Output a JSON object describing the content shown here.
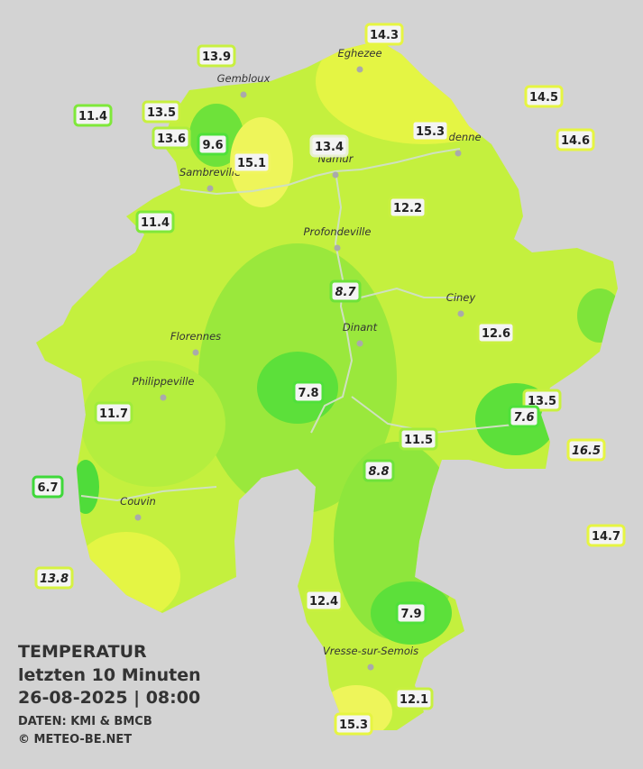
{
  "header": {
    "title": "TEMPERATUR",
    "subtitle": "letzten 10 Minuten",
    "datetime": "26-08-2025  |  08:00",
    "source": "DATEN: KMI & BMCB",
    "copyright": "© METEO-BE.NET"
  },
  "cities": [
    "Eghezee",
    "Gembloux",
    "Andenne",
    "Namur",
    "Sambreville",
    "Profondeville",
    "Ciney",
    "Dinant",
    "Florennes",
    "Philippeville",
    "Couvin",
    "Vresse-sur-Semois"
  ],
  "stations": [
    {
      "label": "14.3",
      "color": "#e6f542",
      "italic": false
    },
    {
      "label": "13.9",
      "color": "#c8f040",
      "italic": false
    },
    {
      "label": "14.5",
      "color": "#e6f542",
      "italic": false
    },
    {
      "label": "11.4",
      "color": "#7fe83a",
      "italic": false
    },
    {
      "label": "13.5",
      "color": "#c8f040",
      "italic": false
    },
    {
      "label": "13.6",
      "color": "#b0ee3e",
      "italic": false
    },
    {
      "label": "9.6",
      "color": "#4fe03a",
      "italic": false
    },
    {
      "label": "15.1",
      "color": "#f0f560",
      "italic": false
    },
    {
      "label": "13.4",
      "color": "#e8f0d0",
      "italic": false
    },
    {
      "label": "15.3",
      "color": "#e6f542",
      "italic": false
    },
    {
      "label": "14.6",
      "color": "#e6f542",
      "italic": false
    },
    {
      "label": "11.4",
      "color": "#7fe83a",
      "italic": false
    },
    {
      "label": "12.2",
      "color": "#c8f040",
      "italic": false
    },
    {
      "label": "8.7",
      "color": "#6ee23a",
      "italic": true
    },
    {
      "label": "12.6",
      "color": "#c8f040",
      "italic": false
    },
    {
      "label": "7.8",
      "color": "#4fe03a",
      "italic": false
    },
    {
      "label": "13.5",
      "color": "#c8f040",
      "italic": false
    },
    {
      "label": "7.6",
      "color": "#4fe03a",
      "italic": true
    },
    {
      "label": "11.7",
      "color": "#a0ec3c",
      "italic": false
    },
    {
      "label": "11.5",
      "color": "#a0ec3c",
      "italic": false
    },
    {
      "label": "16.5",
      "color": "#e6f542",
      "italic": true
    },
    {
      "label": "8.8",
      "color": "#6ee23a",
      "italic": true
    },
    {
      "label": "6.7",
      "color": "#3fd83a",
      "italic": false
    },
    {
      "label": "14.7",
      "color": "#e6f542",
      "italic": false
    },
    {
      "label": "13.8",
      "color": "#d6f242",
      "italic": true
    },
    {
      "label": "12.4",
      "color": "#c8f040",
      "italic": false
    },
    {
      "label": "7.9",
      "color": "#4fe03a",
      "italic": false
    },
    {
      "label": "12.1",
      "color": "#c8f040",
      "italic": false
    },
    {
      "label": "15.3",
      "color": "#e6f542",
      "italic": false
    }
  ]
}
